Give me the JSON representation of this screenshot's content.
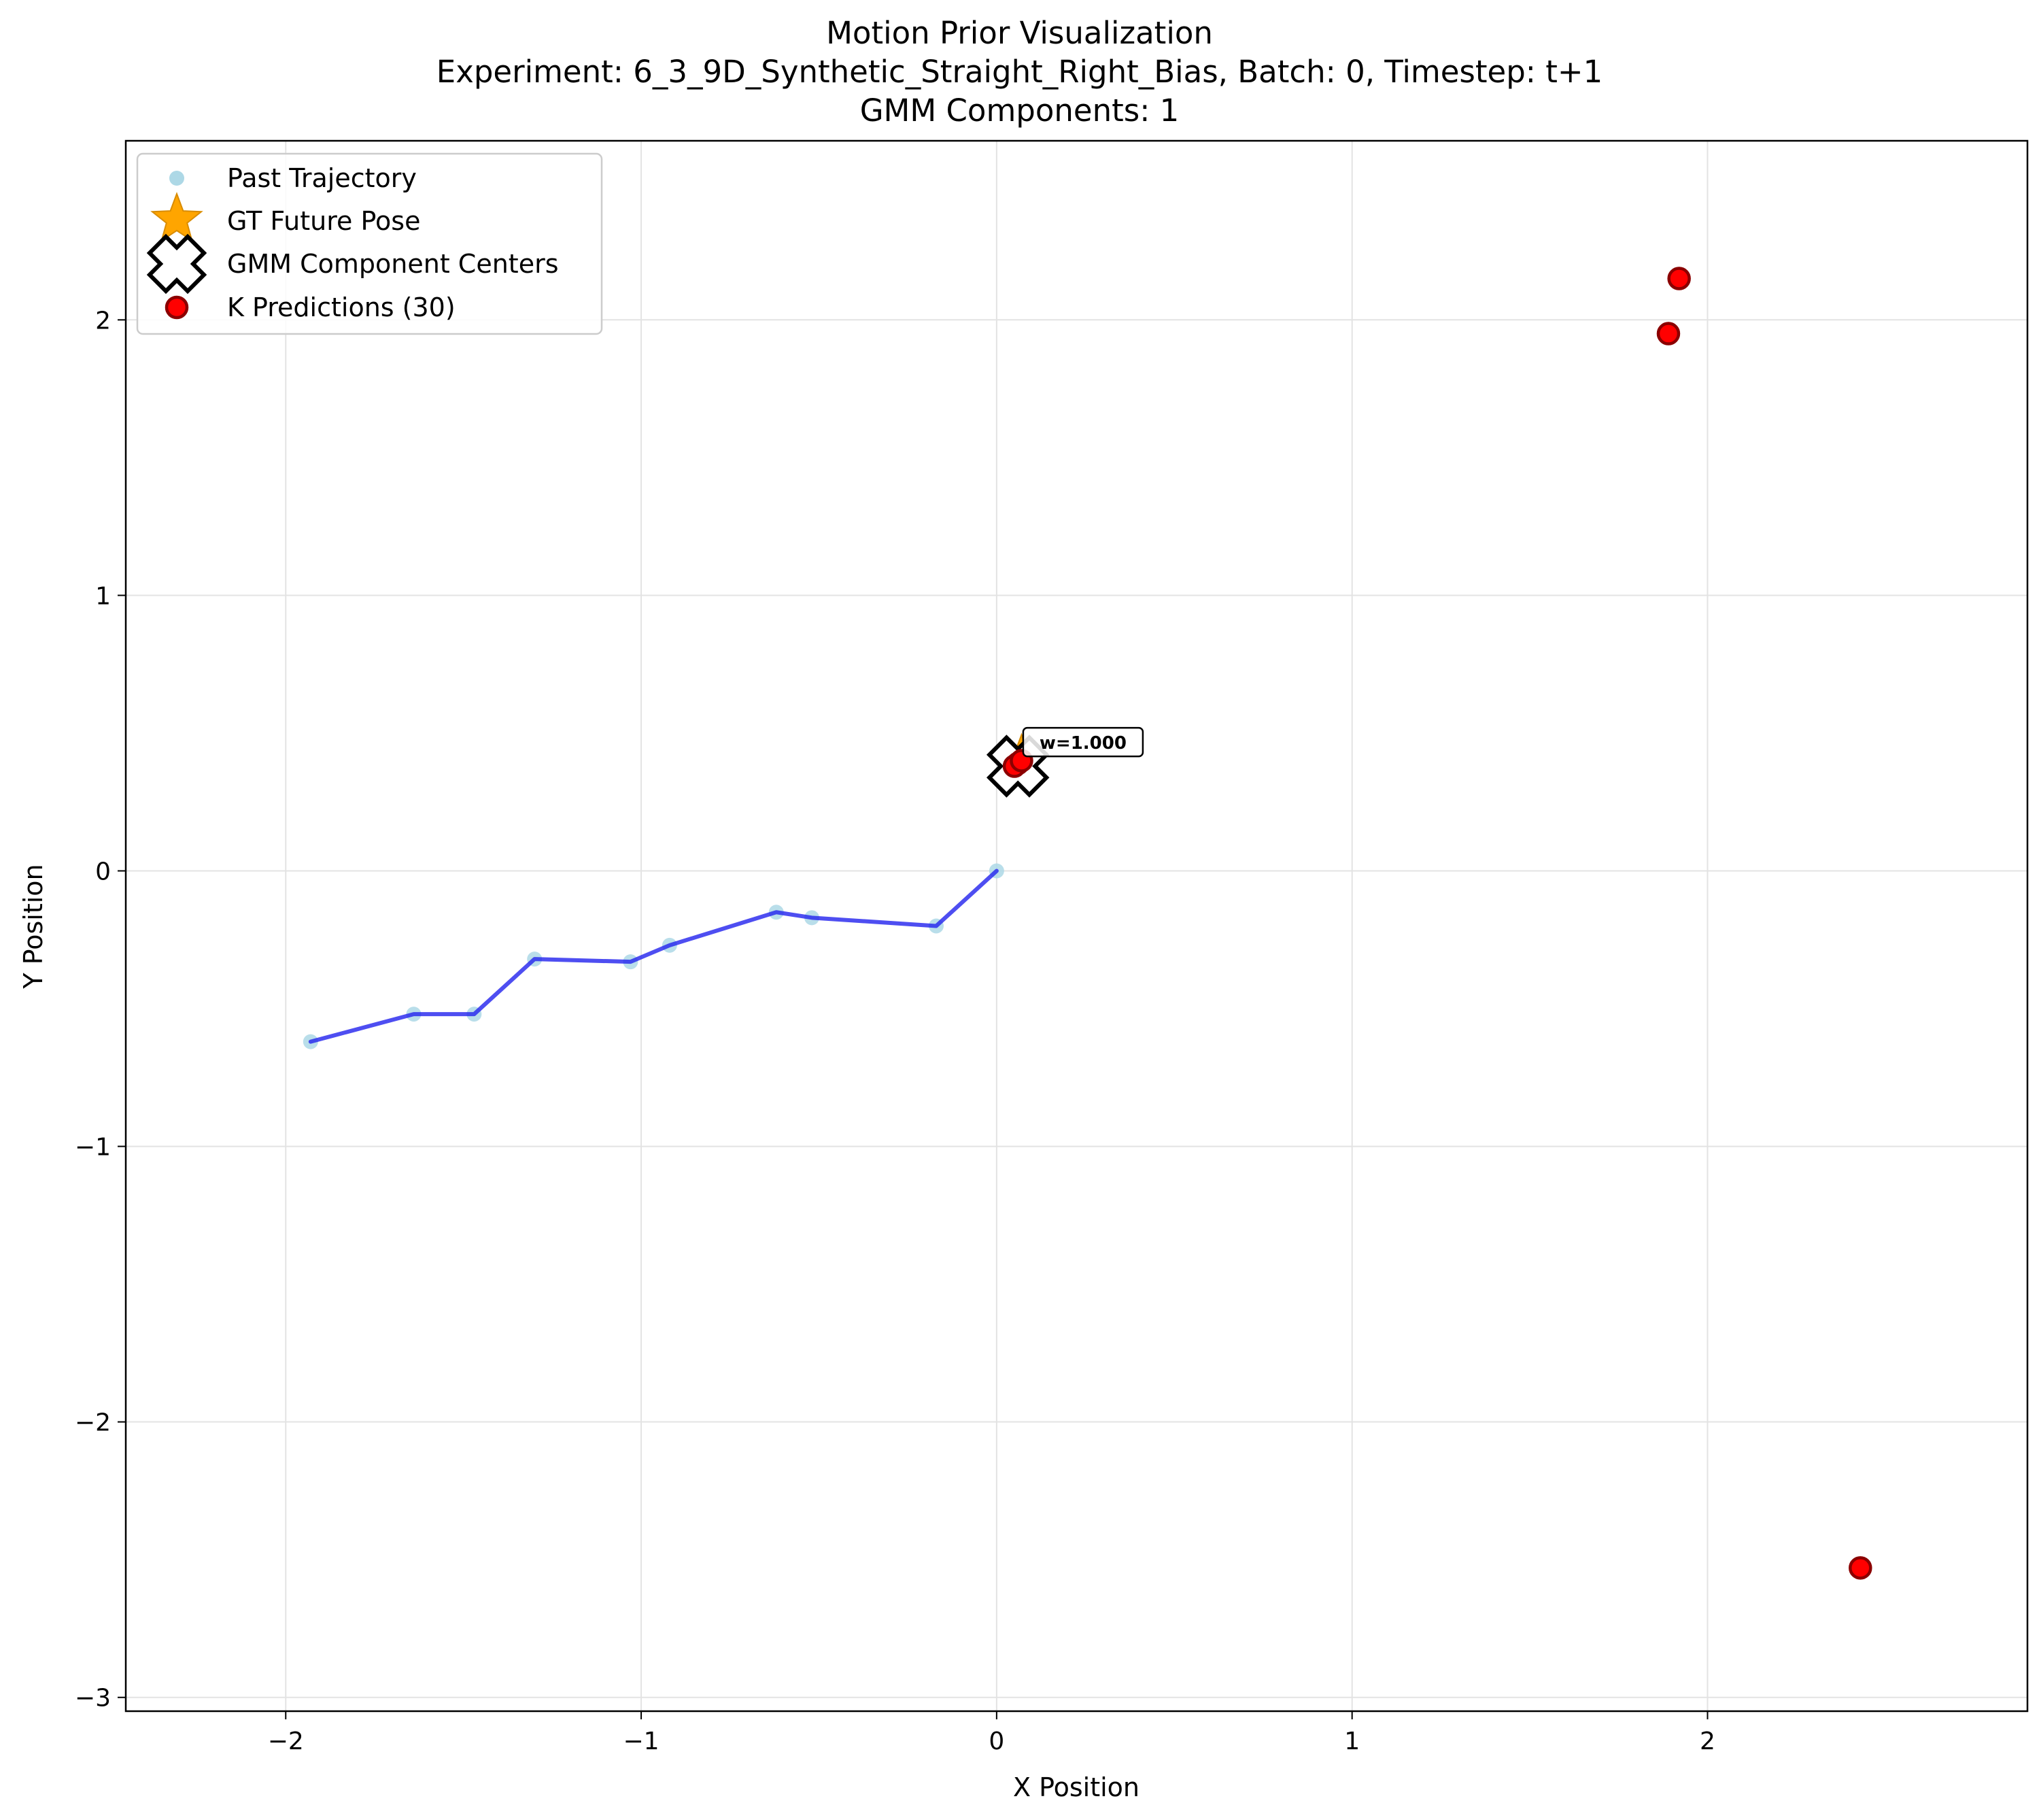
{
  "chart_data": {
    "type": "scatter",
    "title": "Motion Prior Visualization",
    "subtitle": "Experiment: 6_3_9D_Synthetic_Straight_Right_Bias, Batch: 0, Timestep: t+1",
    "subtitle2": "GMM Components: 1",
    "xlabel": "X Position",
    "ylabel": "Y Position",
    "xlim": [
      -2.45,
      2.9
    ],
    "ylim": [
      -3.05,
      2.65
    ],
    "xticks": [
      -2,
      -1,
      0,
      1,
      2
    ],
    "yticks": [
      -3,
      -2,
      -1,
      0,
      1,
      2
    ],
    "grid": true,
    "legend_position": "top-left",
    "series": [
      {
        "name": "Past Trajectory",
        "kind": "points-with-line",
        "color": "#add8e6",
        "line_color": "#2222ee",
        "x": [
          -1.93,
          -1.64,
          -1.47,
          -1.3,
          -1.03,
          -0.92,
          -0.62,
          -0.52,
          -0.17,
          0.0
        ],
        "y": [
          -0.62,
          -0.52,
          -0.52,
          -0.32,
          -0.33,
          -0.27,
          -0.15,
          -0.17,
          -0.2,
          0.0
        ]
      },
      {
        "name": "GT Future Pose",
        "kind": "star",
        "color": "#ffa500",
        "x": [
          0.07
        ],
        "y": [
          0.4
        ]
      },
      {
        "name": "GMM Component Centers",
        "kind": "x-marker",
        "color": "#ffffff",
        "x": [
          0.06
        ],
        "y": [
          0.38
        ]
      },
      {
        "name": "K Predictions (30)",
        "kind": "circle",
        "color": "#ff0000",
        "edge_color": "#8b0000",
        "x": [
          0.06,
          0.05,
          0.07,
          1.92,
          1.89,
          2.43
        ],
        "y": [
          0.39,
          0.38,
          0.4,
          2.15,
          1.95,
          -2.53
        ]
      }
    ],
    "annotations": [
      {
        "text": "w=1.000",
        "x": 0.09,
        "y": 0.46
      }
    ]
  }
}
